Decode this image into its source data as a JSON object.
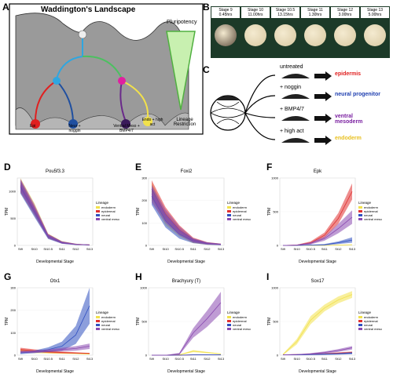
{
  "panels": {
    "A": {
      "letter": "A",
      "title": "Waddington's Landscape",
      "pluripotency": "Pluripotency",
      "lineage_restriction": "Lineage Restriction",
      "valleys": [
        {
          "label": "Epi",
          "color": "#e02020"
        },
        {
          "label": "Neur + noggin",
          "color": "#1f4fa0"
        },
        {
          "label": "Ventral Meso + BMP4/7",
          "color": "#6a2a8a"
        },
        {
          "label": "Endo + high act",
          "color": "#f2e14b"
        }
      ]
    },
    "B": {
      "letter": "B",
      "stages": [
        {
          "stage": "Stage 9",
          "time": "0.45hrs"
        },
        {
          "stage": "Stage 10",
          "time": "11.00hrs"
        },
        {
          "stage": "Stage 10.5",
          "time": "13.15hrs"
        },
        {
          "stage": "Stage 11",
          "time": "1.30hrs"
        },
        {
          "stage": "Stage 12",
          "time": "3.00hrs"
        },
        {
          "stage": "Stage 13",
          "time": "5.00hrs"
        }
      ]
    },
    "C": {
      "letter": "C",
      "rows": [
        {
          "treatment": "untreated",
          "fate": "epidermis",
          "color": "#e02020"
        },
        {
          "treatment": "+ noggin",
          "fate": "neural progenitor",
          "color": "#1f3fb0"
        },
        {
          "treatment": "+ BMP4/7",
          "fate": "ventral mesoderm",
          "color": "#7a1fa0"
        },
        {
          "treatment": "+ high act",
          "fate": "endoderm",
          "color": "#e8c020"
        }
      ]
    }
  },
  "lineage_colors": {
    "endoderm": "#f2e14b",
    "epidermal": "#e03030",
    "neural": "#3050c0",
    "ventral_meso": "#8a4ab0"
  },
  "chart_data": [
    {
      "letter": "D",
      "type": "line",
      "title": "Pou5f3.3",
      "xlabel": "Developmental Stage",
      "ylabel": "TPM",
      "categories": [
        "St9",
        "St10",
        "St10.5",
        "St11",
        "St12",
        "St13"
      ],
      "ylim": [
        0,
        1250
      ],
      "yticks": [
        0,
        500,
        1000
      ],
      "legend_title": "Lineage",
      "legend": [
        "endoderm",
        "epidermal",
        "neural",
        "ventral meso"
      ],
      "series": [
        {
          "name": "endoderm",
          "values": [
            1150,
            700,
            180,
            60,
            20,
            10
          ],
          "band": [
            120,
            90,
            40,
            20,
            10,
            5
          ]
        },
        {
          "name": "epidermal",
          "values": [
            1100,
            650,
            170,
            55,
            20,
            10
          ],
          "band": [
            120,
            90,
            40,
            20,
            10,
            5
          ]
        },
        {
          "name": "neural",
          "values": [
            1080,
            620,
            160,
            50,
            18,
            8
          ],
          "band": [
            120,
            90,
            40,
            20,
            10,
            5
          ]
        },
        {
          "name": "ventral meso",
          "values": [
            1120,
            680,
            175,
            55,
            20,
            10
          ],
          "band": [
            120,
            90,
            40,
            20,
            10,
            5
          ]
        }
      ]
    },
    {
      "letter": "E",
      "type": "line",
      "title": "Foxi2",
      "xlabel": "Developmental Stage",
      "ylabel": "TPM",
      "categories": [
        "St9",
        "St10",
        "St10.5",
        "St11",
        "St12",
        "St13"
      ],
      "ylim": [
        0,
        300
      ],
      "yticks": [
        0,
        100,
        200,
        300
      ],
      "legend_title": "Lineage",
      "legend": [
        "endoderm",
        "epidermal",
        "neural",
        "ventral meso"
      ],
      "series": [
        {
          "name": "endoderm",
          "values": [
            240,
            120,
            60,
            20,
            8,
            5
          ],
          "band": [
            40,
            30,
            20,
            10,
            5,
            3
          ]
        },
        {
          "name": "epidermal",
          "values": [
            250,
            140,
            70,
            25,
            10,
            5
          ],
          "band": [
            40,
            30,
            20,
            10,
            5,
            3
          ]
        },
        {
          "name": "neural",
          "values": [
            220,
            110,
            50,
            20,
            8,
            4
          ],
          "band": [
            40,
            30,
            20,
            10,
            5,
            3
          ]
        },
        {
          "name": "ventral meso",
          "values": [
            230,
            130,
            65,
            22,
            9,
            5
          ],
          "band": [
            40,
            30,
            20,
            10,
            5,
            3
          ]
        }
      ]
    },
    {
      "letter": "F",
      "type": "line",
      "title": "Epk",
      "xlabel": "Developmental Stage",
      "ylabel": "TPM",
      "categories": [
        "St9",
        "St10",
        "St10.5",
        "St11",
        "St12",
        "St13"
      ],
      "ylim": [
        0,
        1000
      ],
      "yticks": [
        0,
        500,
        1000
      ],
      "legend_title": "Lineage",
      "legend": [
        "endoderm",
        "epidermal",
        "neural",
        "ventral meso"
      ],
      "series": [
        {
          "name": "endoderm",
          "values": [
            0,
            0,
            0,
            0,
            5,
            10
          ],
          "band": [
            0,
            0,
            0,
            0,
            5,
            5
          ]
        },
        {
          "name": "epidermal",
          "values": [
            0,
            5,
            40,
            150,
            400,
            800
          ],
          "band": [
            0,
            5,
            20,
            40,
            80,
            120
          ]
        },
        {
          "name": "neural",
          "values": [
            0,
            0,
            5,
            10,
            40,
            80
          ],
          "band": [
            0,
            0,
            5,
            10,
            20,
            40
          ]
        },
        {
          "name": "ventral meso",
          "values": [
            0,
            5,
            30,
            100,
            250,
            420
          ],
          "band": [
            0,
            5,
            15,
            30,
            70,
            100
          ]
        }
      ]
    },
    {
      "letter": "G",
      "type": "line",
      "title": "Otx1",
      "xlabel": "Developmental Stage",
      "ylabel": "TPM",
      "categories": [
        "St9",
        "St10",
        "St10.5",
        "St11",
        "St12",
        "St13"
      ],
      "ylim": [
        0,
        300
      ],
      "yticks": [
        0,
        100,
        200,
        300
      ],
      "legend_title": "Lineage",
      "legend": [
        "endoderm",
        "epidermal",
        "neural",
        "ventral meso"
      ],
      "series": [
        {
          "name": "endoderm",
          "values": [
            20,
            15,
            12,
            10,
            8,
            5
          ],
          "band": [
            8,
            6,
            5,
            4,
            3,
            2
          ]
        },
        {
          "name": "epidermal",
          "values": [
            25,
            20,
            15,
            12,
            10,
            8
          ],
          "band": [
            8,
            6,
            5,
            4,
            3,
            2
          ]
        },
        {
          "name": "neural",
          "values": [
            10,
            15,
            25,
            40,
            90,
            220
          ],
          "band": [
            5,
            6,
            10,
            20,
            40,
            80
          ]
        },
        {
          "name": "ventral meso",
          "values": [
            15,
            15,
            20,
            25,
            30,
            40
          ],
          "band": [
            5,
            5,
            6,
            8,
            10,
            12
          ]
        }
      ]
    },
    {
      "letter": "H",
      "type": "line",
      "title": "Brachyury (T)",
      "xlabel": "Developmental Stage",
      "ylabel": "TPM",
      "categories": [
        "St9",
        "St10",
        "St10.5",
        "St11",
        "St12",
        "St13"
      ],
      "ylim": [
        0,
        1000
      ],
      "yticks": [
        0,
        500,
        1000
      ],
      "legend_title": "Lineage",
      "legend": [
        "endoderm",
        "epidermal",
        "neural",
        "ventral meso"
      ],
      "series": [
        {
          "name": "endoderm",
          "values": [
            0,
            0,
            5,
            60,
            40,
            20
          ],
          "band": [
            0,
            0,
            5,
            15,
            10,
            5
          ]
        },
        {
          "name": "epidermal",
          "values": [
            0,
            0,
            0,
            5,
            5,
            5
          ],
          "band": [
            0,
            0,
            0,
            3,
            3,
            3
          ]
        },
        {
          "name": "neural",
          "values": [
            0,
            0,
            0,
            5,
            5,
            5
          ],
          "band": [
            0,
            0,
            0,
            3,
            3,
            3
          ]
        },
        {
          "name": "ventral meso",
          "values": [
            0,
            0,
            20,
            330,
            540,
            780
          ],
          "band": [
            0,
            0,
            15,
            70,
            120,
            160
          ]
        }
      ]
    },
    {
      "letter": "I",
      "type": "line",
      "title": "Sox17",
      "xlabel": "Developmental Stage",
      "ylabel": "TPM",
      "categories": [
        "St9",
        "St10",
        "St10.5",
        "St11",
        "St12",
        "St13"
      ],
      "ylim": [
        0,
        1000
      ],
      "yticks": [
        0,
        500,
        1000
      ],
      "legend_title": "Lineage",
      "legend": [
        "endoderm",
        "epidermal",
        "neural",
        "ventral meso"
      ],
      "series": [
        {
          "name": "endoderm",
          "values": [
            10,
            200,
            520,
            700,
            820,
            900
          ],
          "band": [
            10,
            40,
            60,
            50,
            50,
            50
          ]
        },
        {
          "name": "epidermal",
          "values": [
            5,
            10,
            15,
            20,
            30,
            40
          ],
          "band": [
            3,
            5,
            8,
            10,
            12,
            15
          ]
        },
        {
          "name": "neural",
          "values": [
            5,
            5,
            10,
            15,
            20,
            30
          ],
          "band": [
            3,
            5,
            8,
            10,
            12,
            15
          ]
        },
        {
          "name": "ventral meso",
          "values": [
            5,
            10,
            20,
            40,
            70,
            110
          ],
          "band": [
            3,
            5,
            10,
            15,
            20,
            25
          ]
        }
      ]
    }
  ]
}
